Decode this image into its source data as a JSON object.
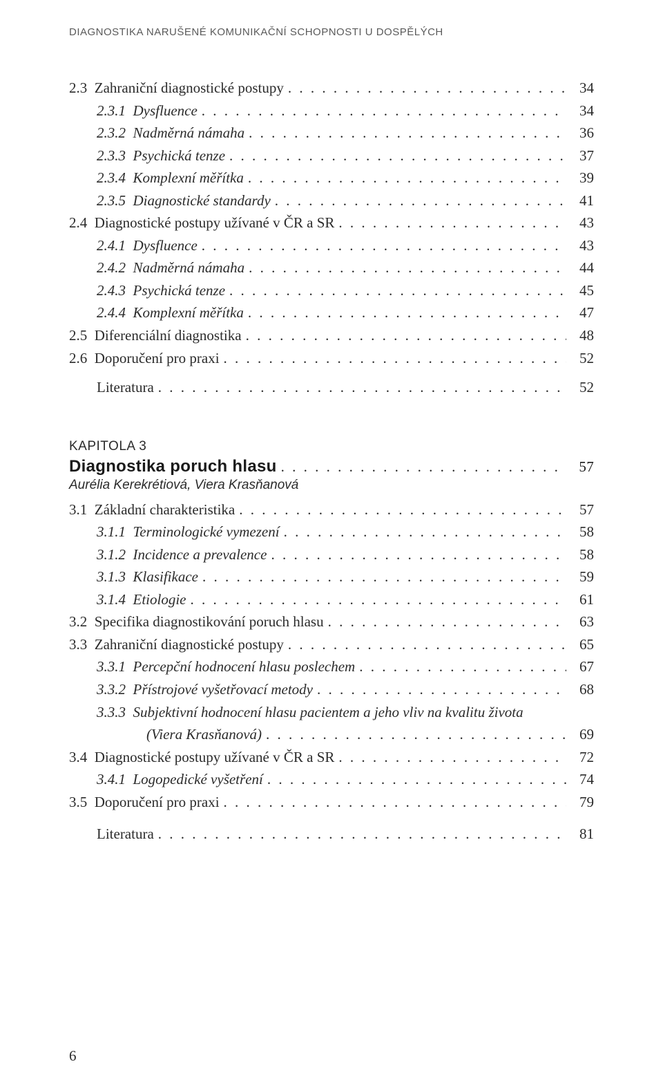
{
  "running_header": "DIAGNOSTIKA NARUŠENÉ KOMUNIKAČNÍ SCHOPNOSTI U DOSPĚLÝCH",
  "page_number": "6",
  "dot_fill": ". . . . . . . . . . . . . . . . . . . . . . . . . . . . . . . . . . . . . . . . . . . . . . . . . . . . . . . . . . . .",
  "block1": [
    {
      "label": "2.3  Zahraniční diagnostické postupy",
      "page": "34",
      "level": 0,
      "italic": false
    },
    {
      "label": "2.3.1  Dysfluence",
      "page": "34",
      "level": 1,
      "italic": true
    },
    {
      "label": "2.3.2  Nadměrná námaha",
      "page": "36",
      "level": 1,
      "italic": true
    },
    {
      "label": "2.3.3  Psychická tenze",
      "page": "37",
      "level": 1,
      "italic": true
    },
    {
      "label": "2.3.4  Komplexní měřítka",
      "page": "39",
      "level": 1,
      "italic": true
    },
    {
      "label": "2.3.5  Diagnostické standardy",
      "page": "41",
      "level": 1,
      "italic": true
    },
    {
      "label": "2.4  Diagnostické postupy užívané v ČR a SR",
      "page": "43",
      "level": 0,
      "italic": false
    },
    {
      "label": "2.4.1  Dysfluence",
      "page": "43",
      "level": 1,
      "italic": true
    },
    {
      "label": "2.4.2  Nadměrná námaha",
      "page": "44",
      "level": 1,
      "italic": true
    },
    {
      "label": "2.4.3  Psychická tenze",
      "page": "45",
      "level": 1,
      "italic": true
    },
    {
      "label": "2.4.4  Komplexní měřítka",
      "page": "47",
      "level": 1,
      "italic": true
    },
    {
      "label": "2.5  Diferenciální diagnostika",
      "page": "48",
      "level": 0,
      "italic": false
    },
    {
      "label": "2.6  Doporučení pro praxi",
      "page": "52",
      "level": 0,
      "italic": false
    }
  ],
  "block1_lit": {
    "label": "Literatura",
    "page": "52",
    "level": 2,
    "italic": false
  },
  "chapter3": {
    "kapitola": "KAPITOLA 3",
    "title": "Diagnostika poruch hlasu",
    "page": "57",
    "authors": "Aurélia Kerekrétiová, Viera Krasňanová"
  },
  "block2": [
    {
      "label": "3.1  Základní charakteristika",
      "page": "57",
      "level": 0,
      "italic": false
    },
    {
      "label": "3.1.1  Terminologické vymezení",
      "page": "58",
      "level": 1,
      "italic": true
    },
    {
      "label": "3.1.2  Incidence a prevalence",
      "page": "58",
      "level": 1,
      "italic": true
    },
    {
      "label": "3.1.3  Klasifikace",
      "page": "59",
      "level": 1,
      "italic": true
    },
    {
      "label": "3.1.4  Etiologie",
      "page": "61",
      "level": 1,
      "italic": true
    },
    {
      "label": "3.2  Specifika diagnostikování poruch hlasu",
      "page": "63",
      "level": 0,
      "italic": false
    },
    {
      "label": "3.3  Zahraniční diagnostické postupy",
      "page": "65",
      "level": 0,
      "italic": false
    },
    {
      "label": "3.3.1  Percepční hodnocení hlasu poslechem",
      "page": "67",
      "level": 1,
      "italic": true
    },
    {
      "label": "3.3.2  Přístrojové vyšetřovací metody",
      "page": "68",
      "level": 1,
      "italic": true
    },
    {
      "label": "3.3.3  Subjektivní hodnocení hlasu pacientem a jeho vliv na kvalitu života",
      "page": "",
      "level": 1,
      "italic": true,
      "no_dots": true
    },
    {
      "label": "(Viera Krasňanová)",
      "page": "69",
      "level": 3,
      "italic": true
    },
    {
      "label": "3.4  Diagnostické postupy užívané v ČR a SR",
      "page": "72",
      "level": 0,
      "italic": false
    },
    {
      "label": "3.4.1  Logopedické vyšetření",
      "page": "74",
      "level": 1,
      "italic": true
    },
    {
      "label": "3.5  Doporučení pro praxi",
      "page": "79",
      "level": 0,
      "italic": false
    }
  ],
  "block2_lit": {
    "label": "Literatura",
    "page": "81",
    "level": 2,
    "italic": false
  }
}
